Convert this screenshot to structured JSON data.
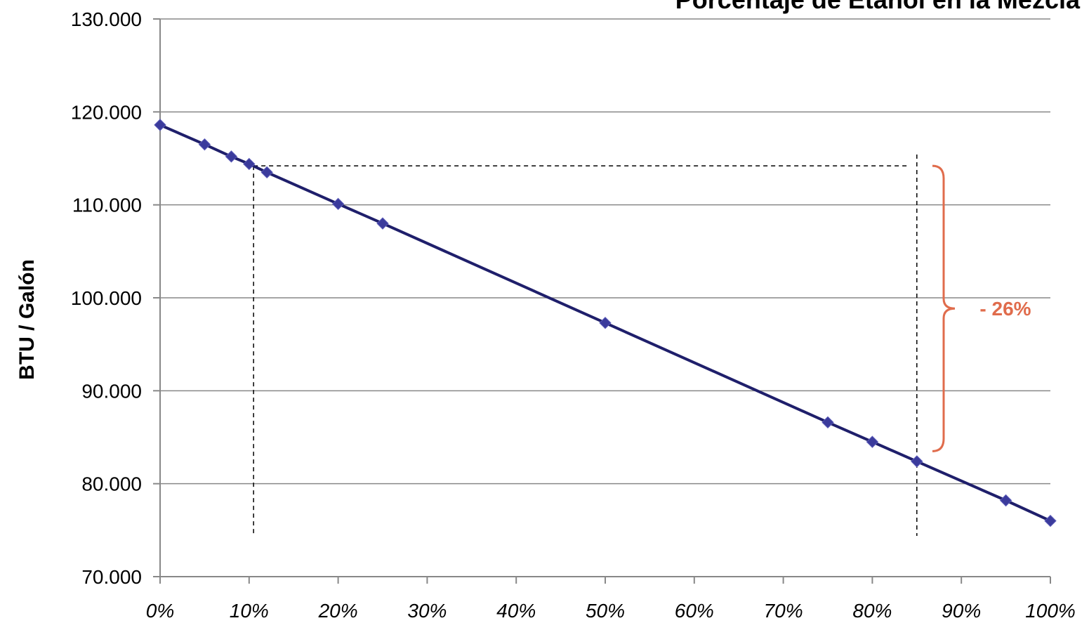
{
  "chart_data": {
    "type": "line",
    "title": "Porcentaje de Etanol en la Mezcla",
    "xlabel": "",
    "ylabel": "BTU / Galón",
    "xlim": [
      0,
      100
    ],
    "ylim": [
      70000,
      130000
    ],
    "x_ticks": [
      "0%",
      "10%",
      "20%",
      "30%",
      "40%",
      "50%",
      "60%",
      "70%",
      "80%",
      "90%",
      "100%"
    ],
    "y_ticks": [
      "70.000",
      "80.000",
      "90.000",
      "100.000",
      "110.000",
      "120.000",
      "130.000"
    ],
    "grid": true,
    "x": [
      0,
      5,
      8,
      10,
      12,
      20,
      25,
      50,
      75,
      80,
      85,
      95,
      100
    ],
    "series": [
      {
        "values": [
          118600,
          116500,
          115200,
          114400,
          113500,
          110100,
          108000,
          97300,
          86600,
          84500,
          82400,
          78200,
          76000
        ]
      }
    ],
    "reference_lines": {
      "x": [
        10.5,
        85
      ],
      "y": 114200
    },
    "annotation": {
      "text": "- 26%",
      "from_y": 114200,
      "to_y": 83500
    },
    "colors": {
      "line": "#1f1f6b",
      "marker": "#3b3b9c",
      "grid": "#888888",
      "axis": "#888888",
      "annotation": "#e06c4c"
    }
  }
}
